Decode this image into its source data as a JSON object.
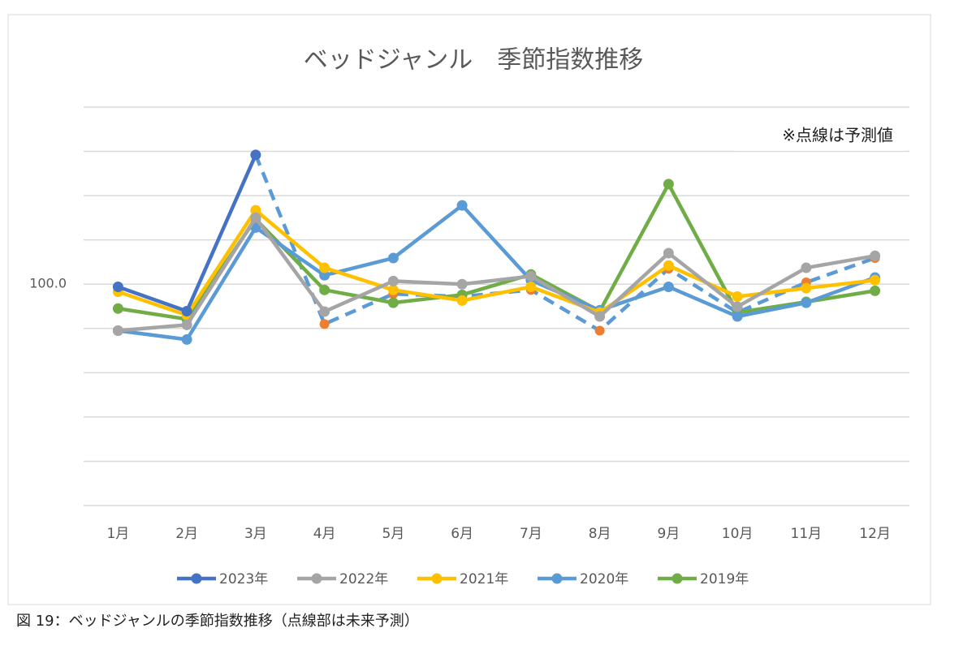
{
  "chart_data": {
    "type": "line",
    "title": "ベッドジャンル　季節指数推移",
    "annotation": "※点線は予測値",
    "caption": "図 19：ベッドジャンルの季節指数推移（点線部は未来予測）",
    "categories": [
      "1月",
      "2月",
      "3月",
      "4月",
      "5月",
      "6月",
      "7月",
      "8月",
      "9月",
      "10月",
      "11月",
      "12月"
    ],
    "ylim": [
      50,
      140
    ],
    "yticks": [
      {
        "value": 100,
        "label": "100.0"
      }
    ],
    "ygrid": [
      50,
      60,
      70,
      80,
      90,
      100,
      110,
      120,
      130,
      140
    ],
    "series": [
      {
        "name": "2023年",
        "color": "#4472c4",
        "values": [
          99.4,
          93.9,
          129.2,
          null,
          null,
          null,
          null,
          null,
          null,
          null,
          null,
          null
        ]
      },
      {
        "name": "2022年",
        "color": "#a5a5a5",
        "values": [
          89.5,
          90.8,
          115.0,
          93.8,
          100.7,
          100.0,
          101.8,
          92.7,
          107.0,
          94.9,
          103.7,
          106.4
        ]
      },
      {
        "name": "2021年",
        "color": "#ffc000",
        "values": [
          98.3,
          93.0,
          116.7,
          103.7,
          98.7,
          96.3,
          99.4,
          93.6,
          104.2,
          97.2,
          99.1,
          100.9
        ]
      },
      {
        "name": "2020年",
        "color": "#5b9bd5",
        "values": [
          89.5,
          87.5,
          112.8,
          102.0,
          105.9,
          117.8,
          100.9,
          94.1,
          99.4,
          92.7,
          95.8,
          101.5
        ]
      },
      {
        "name": "2019年",
        "color": "#70ad47",
        "values": [
          94.5,
          92.1,
          114.7,
          98.7,
          95.8,
          97.6,
          102.2,
          93.9,
          122.6,
          93.6,
          96.0,
          98.5
        ]
      }
    ],
    "forecast": {
      "color": "#5b9bd5",
      "marker_color": "#ed7d31",
      "values": [
        null,
        null,
        129.2,
        91.0,
        97.8,
        97.2,
        98.7,
        89.5,
        103.5,
        93.6,
        100.4,
        105.9
      ]
    }
  }
}
